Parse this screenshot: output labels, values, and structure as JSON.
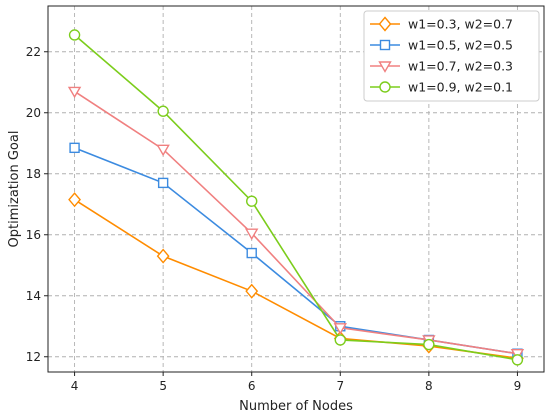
{
  "chart_data": {
    "type": "line",
    "title": "",
    "xlabel": "Number of Nodes",
    "ylabel": "Optimization Goal",
    "x": [
      4,
      5,
      6,
      7,
      8,
      9
    ],
    "xlim": [
      3.7,
      9.3
    ],
    "ylim": [
      11.5,
      23.5
    ],
    "xticks": [
      "4",
      "5",
      "6",
      "7",
      "8",
      "9"
    ],
    "yticks": [
      "12",
      "14",
      "16",
      "18",
      "20",
      "22"
    ],
    "grid": true,
    "legend_position": "top-right",
    "series": [
      {
        "name": "w1=0.3, w2=0.7",
        "color": "#ff8c00",
        "marker": "diamond",
        "values": [
          17.15,
          15.3,
          14.15,
          12.6,
          12.35,
          11.95
        ]
      },
      {
        "name": "w1=0.5, w2=0.5",
        "color": "#3c8be0",
        "marker": "square",
        "values": [
          18.85,
          17.7,
          15.4,
          13.0,
          12.55,
          12.1
        ]
      },
      {
        "name": "w1=0.7, w2=0.3",
        "color": "#f08080",
        "marker": "triangle-down",
        "values": [
          20.7,
          18.8,
          16.05,
          12.95,
          12.55,
          12.1
        ]
      },
      {
        "name": "w1=0.9, w2=0.1",
        "color": "#7ccd1c",
        "marker": "circle",
        "values": [
          22.55,
          20.05,
          17.1,
          12.55,
          12.4,
          11.9
        ]
      }
    ]
  }
}
